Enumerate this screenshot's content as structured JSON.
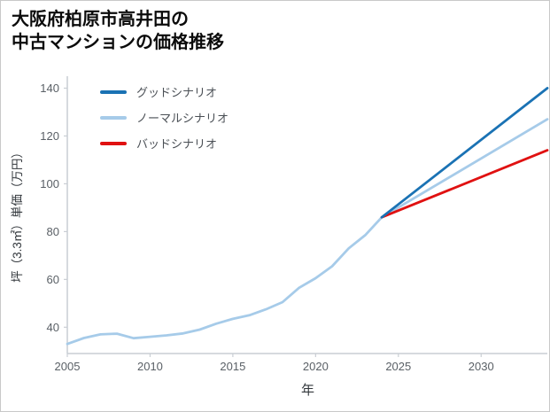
{
  "title": {
    "line1": "大阪府柏原市高井田の",
    "line2": "中古マンションの価格推移"
  },
  "chart_data": {
    "type": "line",
    "title": "大阪府柏原市高井田の中古マンションの価格推移",
    "xlabel": "年",
    "ylabel": "坪（3.3㎡）単価（万円）",
    "xlim": [
      2005,
      2034
    ],
    "ylim": [
      29,
      145
    ],
    "x_ticks": [
      2005,
      2010,
      2015,
      2020,
      2025,
      2030
    ],
    "y_ticks": [
      40,
      60,
      80,
      100,
      120,
      140
    ],
    "grid": false,
    "legend_position": "upper-left",
    "axis_color": "#c9ced4",
    "tick_label_color": "#5a6066",
    "series": [
      {
        "name": "グッドシナリオ",
        "color": "#1a72b4",
        "x": [
          2024,
          2034
        ],
        "values": [
          86,
          140
        ]
      },
      {
        "name": "ノーマルシナリオ",
        "color": "#a6cbe9",
        "x": [
          2005,
          2006,
          2007,
          2008,
          2009,
          2010,
          2011,
          2012,
          2013,
          2014,
          2015,
          2016,
          2017,
          2018,
          2019,
          2020,
          2021,
          2022,
          2023,
          2024,
          2034
        ],
        "values": [
          33,
          35.5,
          37,
          37.3,
          35.4,
          36,
          36.6,
          37.4,
          39,
          41.5,
          43.5,
          45,
          47.5,
          50.5,
          56.5,
          60.5,
          65.5,
          73,
          78.5,
          86,
          127
        ]
      },
      {
        "name": "バッドシナリオ",
        "color": "#e01111",
        "x": [
          2024,
          2034
        ],
        "values": [
          86,
          114
        ]
      }
    ]
  }
}
